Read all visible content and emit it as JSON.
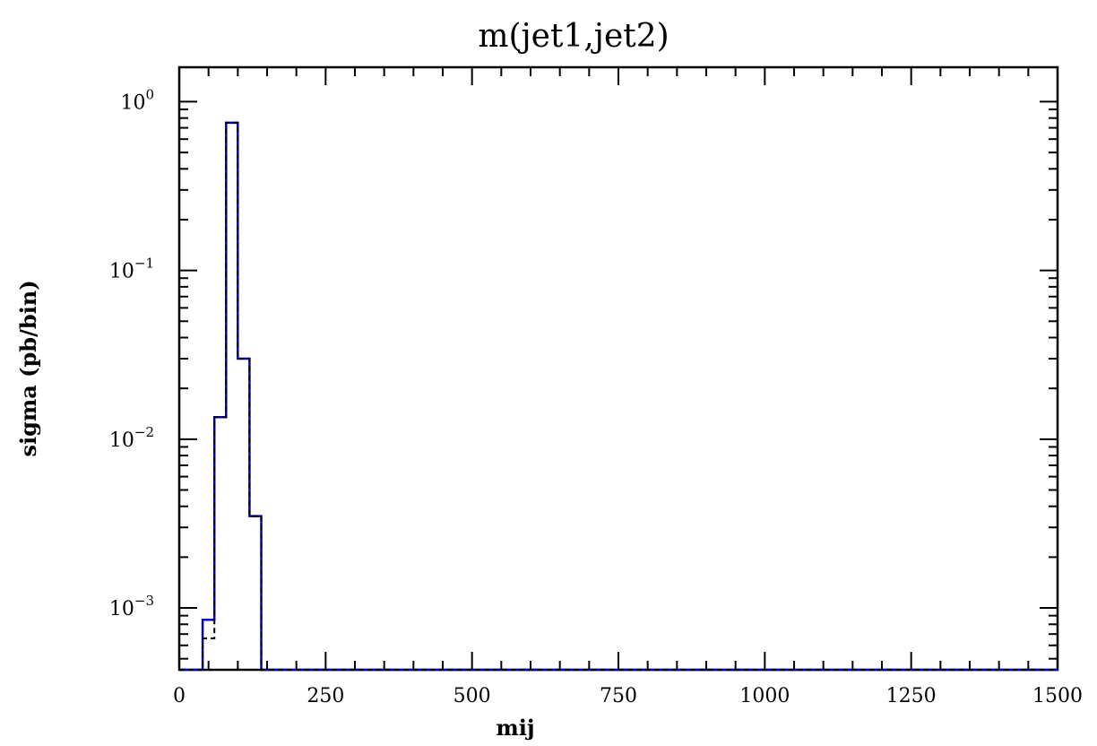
{
  "chart_data": {
    "type": "line",
    "title": "m(jet1,jet2)",
    "xlabel": "mij",
    "ylabel": "sigma (pb/bin)",
    "xlim": [
      0,
      1500
    ],
    "ylim": [
      0.00043,
      1.6
    ],
    "yscale": "log",
    "x_ticks": [
      0,
      250,
      500,
      750,
      1000,
      1250,
      1500
    ],
    "y_ticks": [
      {
        "value": 0.001,
        "base": "10",
        "exp": "−3"
      },
      {
        "value": 0.01,
        "base": "10",
        "exp": "−2"
      },
      {
        "value": 0.1,
        "base": "10",
        "exp": "−1"
      },
      {
        "value": 1,
        "base": "10",
        "exp": "0"
      }
    ],
    "grid": false,
    "bin_edges": [
      0,
      40,
      60,
      80,
      100,
      120,
      140,
      1500
    ],
    "series": [
      {
        "style": "solid",
        "color": "#0000cc",
        "values": [
          0,
          0.00085,
          0.0135,
          0.75,
          0.03,
          0.0035,
          0
        ]
      },
      {
        "style": "dashed",
        "color": "#000000",
        "values": [
          0,
          0.00066,
          0.0135,
          0.75,
          0.03,
          0.0035,
          0
        ]
      }
    ]
  }
}
